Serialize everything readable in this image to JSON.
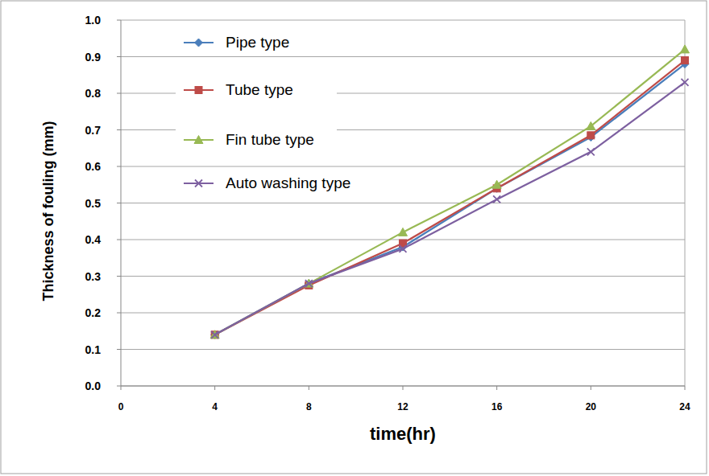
{
  "chart_data": {
    "type": "line",
    "x_label": "time(hr)",
    "y_label": "Thickness of fouling (mm)",
    "x": [
      4,
      8,
      12,
      16,
      20,
      24
    ],
    "xlim": [
      0,
      24
    ],
    "xticks": [
      0,
      4,
      8,
      12,
      16,
      20,
      24
    ],
    "ylim": [
      0,
      1
    ],
    "yticks": [
      {
        "value": 0,
        "label": "0.0"
      },
      0.1,
      0.2,
      0.3,
      0.4,
      0.5,
      0.6,
      0.7,
      0.8,
      0.9,
      {
        "value": 1,
        "label": "1.0"
      }
    ],
    "grid": true,
    "legend": "upper left",
    "series": [
      {
        "name": "Pipe type",
        "color": "#4a7ebb",
        "marker": "diamond",
        "values": [
          0.14,
          0.28,
          0.38,
          0.54,
          0.68,
          0.88
        ]
      },
      {
        "name": "Tube type",
        "color": "#be4b48",
        "marker": "square",
        "values": [
          0.14,
          0.275,
          0.39,
          0.54,
          0.685,
          0.89
        ]
      },
      {
        "name": "Fin tube type",
        "color": "#98b954",
        "marker": "triangle",
        "values": [
          0.14,
          0.28,
          0.42,
          0.55,
          0.71,
          0.92
        ]
      },
      {
        "name": "Auto washing type",
        "color": "#7d60a0",
        "marker": "x",
        "values": [
          0.14,
          0.28,
          0.375,
          0.51,
          0.64,
          0.83
        ]
      }
    ]
  }
}
